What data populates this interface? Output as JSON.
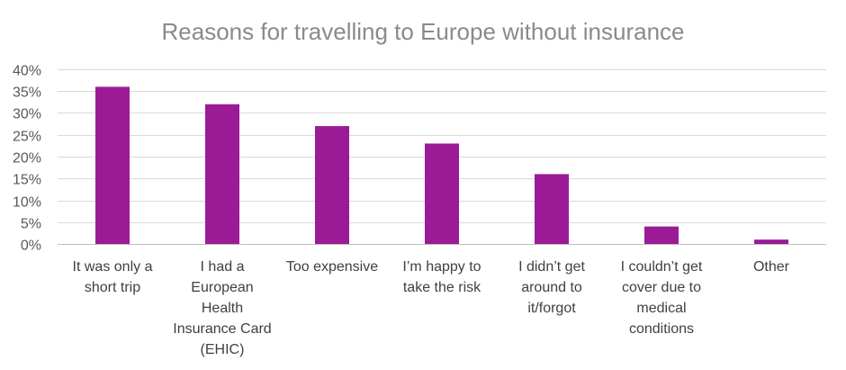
{
  "chart_data": {
    "type": "bar",
    "title": "Reasons for travelling to Europe without insurance",
    "xlabel": "",
    "ylabel": "",
    "ylim": [
      0,
      0.4
    ],
    "yticks": [
      "0%",
      "5%",
      "10%",
      "15%",
      "20%",
      "25%",
      "30%",
      "35%",
      "40%"
    ],
    "grid": true,
    "legend": "none",
    "bar_color": "#9b1b96",
    "categories": [
      [
        "It was only a",
        "short trip"
      ],
      [
        "I had a",
        "European",
        "Health",
        "Insurance Card",
        "(EHIC)"
      ],
      [
        "Too expensive"
      ],
      [
        "I’m happy to",
        "take the risk"
      ],
      [
        "I didn’t get",
        "around to",
        "it/forgot"
      ],
      [
        "I couldn’t get",
        "cover due to",
        "medical",
        "conditions"
      ],
      [
        "Other"
      ]
    ],
    "values": [
      0.36,
      0.32,
      0.27,
      0.23,
      0.16,
      0.04,
      0.01
    ]
  }
}
